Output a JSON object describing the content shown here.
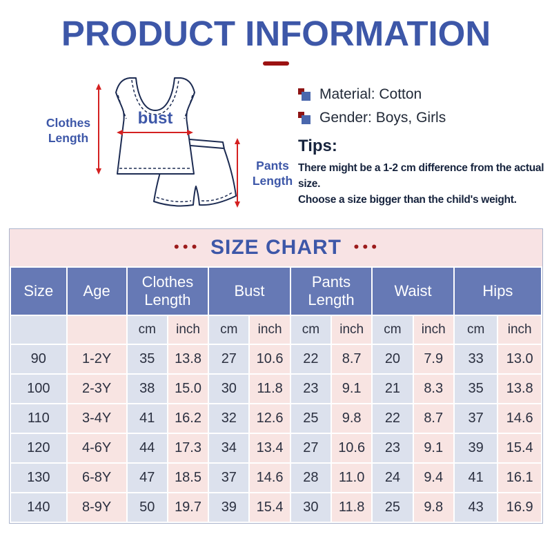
{
  "page_title": "PRODUCT INFORMATION",
  "diagram": {
    "clothes_length_label": "Clothes\nLength",
    "bust_label": "bust",
    "pants_length_label": "Pants\nLength"
  },
  "product": {
    "attributes": [
      "Material: Cotton",
      "Gender: Boys, Girls"
    ],
    "tips_title": "Tips:",
    "tips": [
      "There might be a 1-2 cm difference from the actual size.",
      "Choose a size bigger than the child's weight."
    ]
  },
  "size_chart": {
    "title": "SIZE CHART",
    "dots": "•••",
    "columns": [
      "Size",
      "Age",
      "Clothes Length",
      "Bust",
      "Pants Length",
      "Waist",
      "Hips"
    ],
    "unit_cm": "cm",
    "unit_inch": "inch",
    "rows": [
      [
        "90",
        "1-2Y",
        "35",
        "13.8",
        "27",
        "10.6",
        "22",
        "8.7",
        "20",
        "7.9",
        "33",
        "13.0"
      ],
      [
        "100",
        "2-3Y",
        "38",
        "15.0",
        "30",
        "11.8",
        "23",
        "9.1",
        "21",
        "8.3",
        "35",
        "13.8"
      ],
      [
        "110",
        "3-4Y",
        "41",
        "16.2",
        "32",
        "12.6",
        "25",
        "9.8",
        "22",
        "8.7",
        "37",
        "14.6"
      ],
      [
        "120",
        "4-6Y",
        "44",
        "17.3",
        "34",
        "13.4",
        "27",
        "10.6",
        "23",
        "9.1",
        "39",
        "15.4"
      ],
      [
        "130",
        "6-8Y",
        "47",
        "18.5",
        "37",
        "14.6",
        "28",
        "11.0",
        "24",
        "9.4",
        "41",
        "16.1"
      ],
      [
        "140",
        "8-9Y",
        "50",
        "19.7",
        "39",
        "15.4",
        "30",
        "11.8",
        "25",
        "9.8",
        "43",
        "16.9"
      ]
    ]
  },
  "chart_data": {
    "type": "table",
    "columns": [
      "Size",
      "Age",
      "Clothes Length (cm)",
      "Clothes Length (inch)",
      "Bust (cm)",
      "Bust (inch)",
      "Pants Length (cm)",
      "Pants Length (inch)",
      "Waist (cm)",
      "Waist (inch)",
      "Hips (cm)",
      "Hips (inch)"
    ],
    "rows": [
      [
        "90",
        "1-2Y",
        "35",
        "13.8",
        "27",
        "10.6",
        "22",
        "8.7",
        "20",
        "7.9",
        "33",
        "13.0"
      ],
      [
        "100",
        "2-3Y",
        "38",
        "15.0",
        "30",
        "11.8",
        "23",
        "9.1",
        "21",
        "8.3",
        "35",
        "13.8"
      ],
      [
        "110",
        "3-4Y",
        "41",
        "16.2",
        "32",
        "12.6",
        "25",
        "9.8",
        "22",
        "8.7",
        "37",
        "14.6"
      ],
      [
        "120",
        "4-6Y",
        "44",
        "17.3",
        "34",
        "13.4",
        "27",
        "10.6",
        "23",
        "9.1",
        "39",
        "15.4"
      ],
      [
        "130",
        "6-8Y",
        "47",
        "18.5",
        "37",
        "14.6",
        "28",
        "11.0",
        "24",
        "9.4",
        "41",
        "16.1"
      ],
      [
        "140",
        "8-9Y",
        "50",
        "19.7",
        "39",
        "15.4",
        "30",
        "11.8",
        "25",
        "9.8",
        "43",
        "16.9"
      ]
    ]
  },
  "colors": {
    "title_blue": "#3d57a8",
    "accent_red": "#9c1212",
    "table_header_blue": "#6679b5",
    "cell_lavender": "#dce1ed",
    "cell_pink": "#f8e4e2",
    "band_pink": "#f8e3e4",
    "diagram_navy": "#1c2b52",
    "arrow_red": "#d42020"
  }
}
